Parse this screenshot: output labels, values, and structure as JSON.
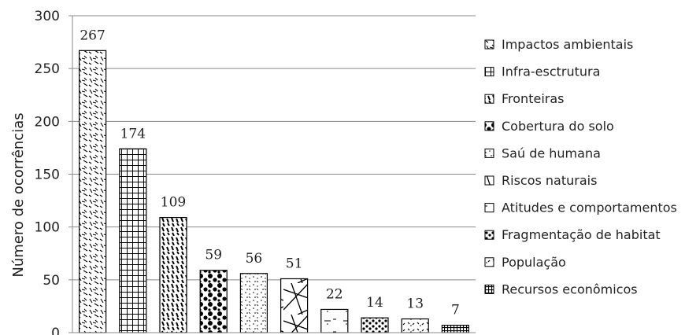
{
  "chart_data": {
    "type": "bar",
    "title": "",
    "xlabel": "",
    "ylabel": "Número de ocorrências",
    "ylim": [
      0,
      300
    ],
    "yticks": [
      0,
      50,
      100,
      150,
      200,
      250,
      300
    ],
    "grid": true,
    "legend_position": "right",
    "categories": [
      "Impactos ambientais",
      "Infra-esctrutura",
      "Fronteiras",
      "Cobertura do solo",
      "Saú de humana",
      "Riscos naturais",
      "Atitudes e comportamentos",
      "Fragmentação de habitat",
      "População",
      "Recursos econômicos"
    ],
    "values": [
      267,
      174,
      109,
      59,
      56,
      51,
      22,
      14,
      13,
      7
    ],
    "patterns": [
      "dashes",
      "grid",
      "heavy-dashes",
      "dots-large",
      "speckle",
      "lines",
      "sparse",
      "dots-small",
      "sparse-marks",
      "dense-grid"
    ]
  }
}
